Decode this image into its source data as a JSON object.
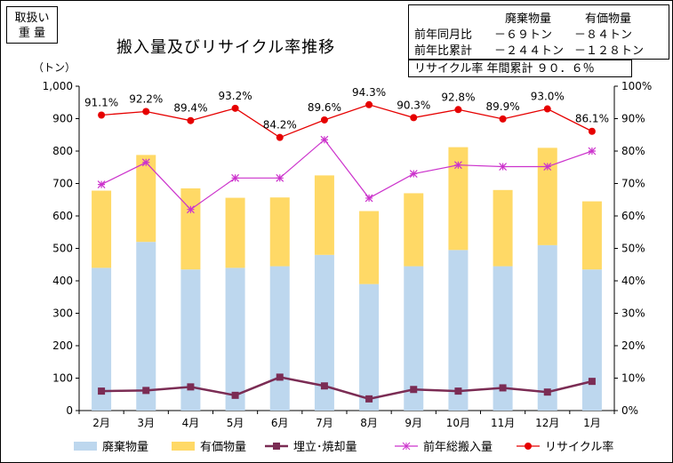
{
  "unit_box": {
    "line1": "取扱い",
    "line2": "重 量"
  },
  "summary": {
    "header_waste": "廃棄物量",
    "header_valuable": "有価物量",
    "row1_label": "前年同月比",
    "row1_waste": "－６９トン",
    "row1_valuable": "－８４トン",
    "row2_label": "前年比累計",
    "row2_waste": "－２４４トン",
    "row2_valuable": "－１２８トン"
  },
  "recycle_box": {
    "text": "リサイクル率 年間累計 ９０．６％"
  },
  "colors": {
    "waste": "#bdd7ee",
    "valuable": "#ffd966",
    "landfill": "#7b2c54",
    "prev_total": "#cc33cc",
    "recycle": "#e60000"
  },
  "chart_data": {
    "type": "bar",
    "title": "搬入量及びリサイクル率推移",
    "ylabel": "（トン）",
    "ylim": [
      0,
      1000
    ],
    "y2lim": [
      0,
      100
    ],
    "y_ticks": [
      "0",
      "100",
      "200",
      "300",
      "400",
      "500",
      "600",
      "700",
      "800",
      "900",
      "1,000"
    ],
    "y2_ticks": [
      "0%",
      "10%",
      "20%",
      "30%",
      "40%",
      "50%",
      "60%",
      "70%",
      "80%",
      "90%",
      "100%"
    ],
    "categories": [
      "2月",
      "3月",
      "4月",
      "5月",
      "6月",
      "7月",
      "8月",
      "9月",
      "10月",
      "11月",
      "12月",
      "1月"
    ],
    "series": [
      {
        "name": "廃棄物量",
        "kind": "stacked-bar",
        "values": [
          440,
          520,
          435,
          440,
          445,
          480,
          390,
          445,
          495,
          445,
          510,
          435
        ]
      },
      {
        "name": "有価物量",
        "kind": "stacked-bar",
        "values": [
          238,
          268,
          250,
          216,
          212,
          245,
          225,
          225,
          317,
          235,
          300,
          210
        ]
      },
      {
        "name": "埋立･焼却量",
        "kind": "line",
        "values": [
          60,
          62,
          73,
          47,
          103,
          76,
          36,
          65,
          60,
          70,
          57,
          90
        ]
      },
      {
        "name": "前年総搬入量",
        "kind": "line",
        "values": [
          697,
          765,
          620,
          717,
          717,
          835,
          655,
          730,
          757,
          752,
          752,
          800
        ]
      },
      {
        "name": "リサイクル率",
        "kind": "line-secondary",
        "values": [
          91.1,
          92.2,
          89.4,
          93.2,
          84.2,
          89.6,
          94.3,
          90.3,
          92.8,
          89.9,
          93.0,
          86.1
        ]
      }
    ],
    "data_labels": [
      "91.1%",
      "92.2%",
      "89.4%",
      "93.2%",
      "84.2%",
      "89.6%",
      "94.3%",
      "90.3%",
      "92.8%",
      "89.9%",
      "93.0%",
      "86.1%"
    ],
    "legend_position": "bottom",
    "grid": false
  }
}
